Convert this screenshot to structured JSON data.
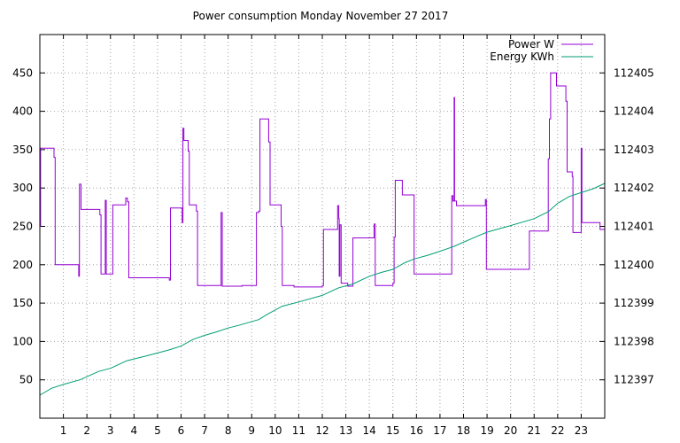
{
  "chart_data": {
    "type": "line",
    "title": "Power consumption Monday November 27 2017",
    "xlabel": "",
    "ylabel": "",
    "y2label": "",
    "xlim": [
      0,
      24
    ],
    "ylim": [
      0,
      500
    ],
    "y2lim": [
      112396,
      112406
    ],
    "x_ticks": [
      1,
      2,
      3,
      4,
      5,
      6,
      7,
      8,
      9,
      10,
      11,
      12,
      13,
      14,
      15,
      16,
      17,
      18,
      19,
      20,
      21,
      22,
      23
    ],
    "y_ticks": [
      50,
      100,
      150,
      200,
      250,
      300,
      350,
      400,
      450
    ],
    "y2_ticks": [
      112397,
      112398,
      112399,
      112400,
      112401,
      112402,
      112403,
      112404,
      112405
    ],
    "grid": true,
    "legend_position": "top-right",
    "colors": {
      "power": "#9400d3",
      "energy": "#009e73"
    },
    "series": [
      {
        "name": "Power W",
        "axis": "left",
        "step": true,
        "points": [
          [
            0.0,
            250
          ],
          [
            0.03,
            352
          ],
          [
            0.55,
            352
          ],
          [
            0.6,
            340
          ],
          [
            0.65,
            200
          ],
          [
            1.6,
            200
          ],
          [
            1.65,
            185
          ],
          [
            1.68,
            305
          ],
          [
            1.72,
            305
          ],
          [
            1.75,
            272
          ],
          [
            2.5,
            272
          ],
          [
            2.55,
            265
          ],
          [
            2.6,
            188
          ],
          [
            2.75,
            188
          ],
          [
            2.78,
            284
          ],
          [
            2.82,
            188
          ],
          [
            3.05,
            188
          ],
          [
            3.1,
            278
          ],
          [
            3.6,
            278
          ],
          [
            3.65,
            287
          ],
          [
            3.72,
            282
          ],
          [
            3.78,
            183
          ],
          [
            5.45,
            183
          ],
          [
            5.5,
            180
          ],
          [
            5.55,
            274
          ],
          [
            6.0,
            274
          ],
          [
            6.05,
            255
          ],
          [
            6.08,
            378
          ],
          [
            6.12,
            362
          ],
          [
            6.28,
            362
          ],
          [
            6.3,
            348
          ],
          [
            6.35,
            278
          ],
          [
            6.6,
            278
          ],
          [
            6.65,
            270
          ],
          [
            6.7,
            173
          ],
          [
            7.65,
            173
          ],
          [
            7.7,
            268
          ],
          [
            7.75,
            172
          ],
          [
            8.55,
            172
          ],
          [
            8.6,
            173
          ],
          [
            9.15,
            173
          ],
          [
            9.2,
            268
          ],
          [
            9.3,
            270
          ],
          [
            9.35,
            390
          ],
          [
            9.68,
            390
          ],
          [
            9.72,
            360
          ],
          [
            9.78,
            278
          ],
          [
            10.2,
            278
          ],
          [
            10.25,
            250
          ],
          [
            10.3,
            173
          ],
          [
            10.75,
            173
          ],
          [
            10.8,
            171
          ],
          [
            11.95,
            171
          ],
          [
            12.0,
            173
          ],
          [
            12.05,
            246
          ],
          [
            12.6,
            246
          ],
          [
            12.65,
            277
          ],
          [
            12.7,
            260
          ],
          [
            12.72,
            185
          ],
          [
            12.75,
            252
          ],
          [
            12.8,
            176
          ],
          [
            13.05,
            176
          ],
          [
            13.08,
            172
          ],
          [
            13.25,
            172
          ],
          [
            13.3,
            235
          ],
          [
            14.15,
            235
          ],
          [
            14.2,
            253
          ],
          [
            14.25,
            173
          ],
          [
            14.95,
            173
          ],
          [
            15.0,
            176
          ],
          [
            15.05,
            236
          ],
          [
            15.1,
            310
          ],
          [
            15.35,
            310
          ],
          [
            15.4,
            291
          ],
          [
            15.85,
            291
          ],
          [
            15.9,
            188
          ],
          [
            17.45,
            188
          ],
          [
            17.5,
            290
          ],
          [
            17.55,
            283
          ],
          [
            17.6,
            418
          ],
          [
            17.62,
            283
          ],
          [
            17.7,
            277
          ],
          [
            18.9,
            277
          ],
          [
            18.93,
            285
          ],
          [
            18.97,
            194
          ],
          [
            20.75,
            194
          ],
          [
            20.8,
            244
          ],
          [
            21.55,
            244
          ],
          [
            21.6,
            338
          ],
          [
            21.65,
            390
          ],
          [
            21.7,
            450
          ],
          [
            21.9,
            450
          ],
          [
            21.95,
            433
          ],
          [
            22.3,
            433
          ],
          [
            22.35,
            413
          ],
          [
            22.4,
            321
          ],
          [
            22.6,
            321
          ],
          [
            22.62,
            315
          ],
          [
            22.65,
            242
          ],
          [
            22.95,
            242
          ],
          [
            23.0,
            352
          ],
          [
            23.03,
            255
          ],
          [
            23.75,
            255
          ],
          [
            23.8,
            246
          ],
          [
            24.0,
            246
          ]
        ]
      },
      {
        "name": "Energy KWh",
        "axis": "right",
        "step": false,
        "points": [
          [
            0.0,
            112396.6
          ],
          [
            0.5,
            112396.78
          ],
          [
            1.0,
            112396.88
          ],
          [
            1.7,
            112397.0
          ],
          [
            2.5,
            112397.22
          ],
          [
            3.0,
            112397.3
          ],
          [
            3.7,
            112397.5
          ],
          [
            4.5,
            112397.62
          ],
          [
            5.5,
            112397.78
          ],
          [
            6.0,
            112397.88
          ],
          [
            6.5,
            112398.05
          ],
          [
            7.0,
            112398.16
          ],
          [
            7.5,
            112398.25
          ],
          [
            8.0,
            112398.35
          ],
          [
            8.5,
            112398.43
          ],
          [
            9.3,
            112398.57
          ],
          [
            9.7,
            112398.72
          ],
          [
            10.3,
            112398.92
          ],
          [
            11.0,
            112399.03
          ],
          [
            12.0,
            112399.2
          ],
          [
            12.7,
            112399.4
          ],
          [
            13.3,
            112399.5
          ],
          [
            14.0,
            112399.7
          ],
          [
            14.5,
            112399.8
          ],
          [
            15.0,
            112399.88
          ],
          [
            15.5,
            112400.05
          ],
          [
            15.9,
            112400.15
          ],
          [
            16.5,
            112400.25
          ],
          [
            17.0,
            112400.35
          ],
          [
            17.6,
            112400.48
          ],
          [
            18.5,
            112400.72
          ],
          [
            19.0,
            112400.85
          ],
          [
            20.0,
            112401.02
          ],
          [
            21.0,
            112401.2
          ],
          [
            21.6,
            112401.38
          ],
          [
            22.0,
            112401.6
          ],
          [
            22.5,
            112401.78
          ],
          [
            23.0,
            112401.88
          ],
          [
            23.5,
            112401.98
          ],
          [
            24.0,
            112402.12
          ]
        ]
      }
    ]
  }
}
